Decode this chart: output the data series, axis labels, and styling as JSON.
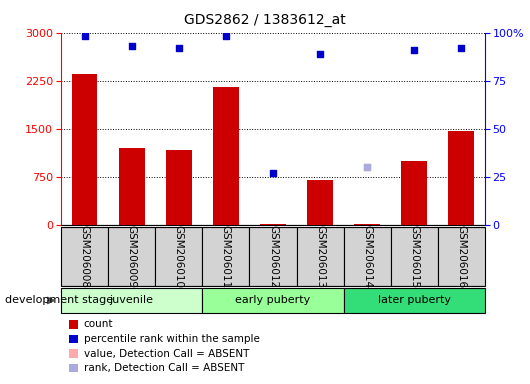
{
  "title": "GDS2862 / 1383612_at",
  "samples": [
    "GSM206008",
    "GSM206009",
    "GSM206010",
    "GSM206011",
    "GSM206012",
    "GSM206013",
    "GSM206014",
    "GSM206015",
    "GSM206016"
  ],
  "bar_values": [
    2350,
    1200,
    1170,
    2150,
    15,
    700,
    10,
    1000,
    1460
  ],
  "blue_dot_values": [
    98,
    93,
    92,
    98,
    27,
    89,
    null,
    91,
    92
  ],
  "absent_value": [
    null,
    null,
    null,
    null,
    null,
    null,
    900,
    null,
    null
  ],
  "absent_rank": [
    null,
    null,
    null,
    null,
    null,
    null,
    30,
    null,
    null
  ],
  "bar_color": "#cc0000",
  "dot_color": "#0000cc",
  "absent_val_color": "#ffaaaa",
  "absent_rank_color": "#aaaadd",
  "ylim_left": [
    0,
    3000
  ],
  "ylim_right": [
    0,
    100
  ],
  "yticks_left": [
    0,
    750,
    1500,
    2250,
    3000
  ],
  "yticks_right": [
    0,
    25,
    50,
    75,
    100
  ],
  "groups": [
    {
      "label": "juvenile",
      "indices": [
        0,
        1,
        2
      ],
      "color": "#ccffcc"
    },
    {
      "label": "early puberty",
      "indices": [
        3,
        4,
        5
      ],
      "color": "#99ff99"
    },
    {
      "label": "later puberty",
      "indices": [
        6,
        7,
        8
      ],
      "color": "#33dd77"
    }
  ],
  "dev_stage_label": "development stage",
  "legend": [
    {
      "label": "count",
      "color": "#cc0000"
    },
    {
      "label": "percentile rank within the sample",
      "color": "#0000cc"
    },
    {
      "label": "value, Detection Call = ABSENT",
      "color": "#ffaaaa"
    },
    {
      "label": "rank, Detection Call = ABSENT",
      "color": "#aaaadd"
    }
  ],
  "sample_box_color": "#d3d3d3",
  "figure_bg": "#ffffff"
}
